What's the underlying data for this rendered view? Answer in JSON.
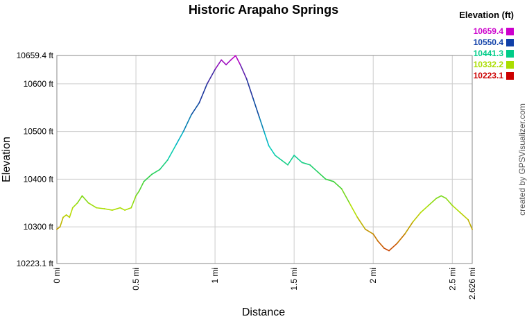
{
  "chart_data": {
    "type": "line",
    "title": "Historic Arapaho Springs",
    "xlabel": "Distance",
    "ylabel": "Elevation",
    "xlim": [
      0,
      2.626
    ],
    "ylim": [
      10223.1,
      10659.4
    ],
    "x_ticks": [
      {
        "value": 0,
        "label": "0 mi"
      },
      {
        "value": 0.5,
        "label": "0.5 mi"
      },
      {
        "value": 1,
        "label": "1 mi"
      },
      {
        "value": 1.5,
        "label": "1.5 mi"
      },
      {
        "value": 2,
        "label": "2 mi"
      },
      {
        "value": 2.5,
        "label": "2.5 mi"
      },
      {
        "value": 2.626,
        "label": "2.626 mi"
      }
    ],
    "y_ticks": [
      {
        "value": 10223.1,
        "label": "10223.1 ft"
      },
      {
        "value": 10300,
        "label": "10300 ft"
      },
      {
        "value": 10400,
        "label": "10400 ft"
      },
      {
        "value": 10500,
        "label": "10500 ft"
      },
      {
        "value": 10600,
        "label": "10600 ft"
      },
      {
        "value": 10659.4,
        "label": "10659.4 ft"
      }
    ],
    "grid": true,
    "legend": {
      "title": "Elevation (ft)",
      "position": "top-right",
      "entries": [
        {
          "label": "10659.4",
          "color": "#cc00cc"
        },
        {
          "label": "10550.4",
          "color": "#1040a8"
        },
        {
          "label": "10441.3",
          "color": "#00cc88"
        },
        {
          "label": "10332.2",
          "color": "#aadd00"
        },
        {
          "label": "10223.1",
          "color": "#cc0000"
        }
      ]
    },
    "color_scale": [
      {
        "value": 10223.1,
        "color": "#cc0000"
      },
      {
        "value": 10270,
        "color": "#c86e00"
      },
      {
        "value": 10332.2,
        "color": "#b8e000"
      },
      {
        "value": 10400,
        "color": "#30d040"
      },
      {
        "value": 10470,
        "color": "#00cccc"
      },
      {
        "value": 10560,
        "color": "#103c9c"
      },
      {
        "value": 10610,
        "color": "#3030a0"
      },
      {
        "value": 10659.4,
        "color": "#cc00cc"
      }
    ],
    "series": [
      {
        "x": [
          0,
          0.02,
          0.04,
          0.06,
          0.08,
          0.1,
          0.13,
          0.16,
          0.2,
          0.25,
          0.3,
          0.35,
          0.4,
          0.43,
          0.47,
          0.5,
          0.52,
          0.55,
          0.6,
          0.65,
          0.7,
          0.75,
          0.8,
          0.85,
          0.9,
          0.95,
          1.0,
          1.04,
          1.07,
          1.1,
          1.13,
          1.16,
          1.2,
          1.24,
          1.28,
          1.31,
          1.34,
          1.38,
          1.42,
          1.46,
          1.5,
          1.55,
          1.6,
          1.65,
          1.7,
          1.75,
          1.8,
          1.85,
          1.9,
          1.95,
          2.0,
          2.03,
          2.07,
          2.1,
          2.15,
          2.2,
          2.25,
          2.3,
          2.35,
          2.4,
          2.43,
          2.46,
          2.5,
          2.55,
          2.6,
          2.626
        ],
        "y": [
          10295,
          10300,
          10320,
          10325,
          10320,
          10340,
          10350,
          10365,
          10350,
          10340,
          10338,
          10335,
          10340,
          10335,
          10340,
          10365,
          10375,
          10395,
          10410,
          10420,
          10440,
          10470,
          10500,
          10535,
          10560,
          10600,
          10630,
          10650,
          10640,
          10650,
          10659,
          10640,
          10610,
          10570,
          10530,
          10500,
          10470,
          10450,
          10440,
          10430,
          10450,
          10435,
          10430,
          10415,
          10400,
          10395,
          10380,
          10350,
          10320,
          10295,
          10285,
          10270,
          10255,
          10250,
          10265,
          10285,
          10310,
          10330,
          10345,
          10360,
          10365,
          10360,
          10345,
          10330,
          10315,
          10295
        ]
      }
    ]
  },
  "credit": "created by GPSVisualizer.com"
}
